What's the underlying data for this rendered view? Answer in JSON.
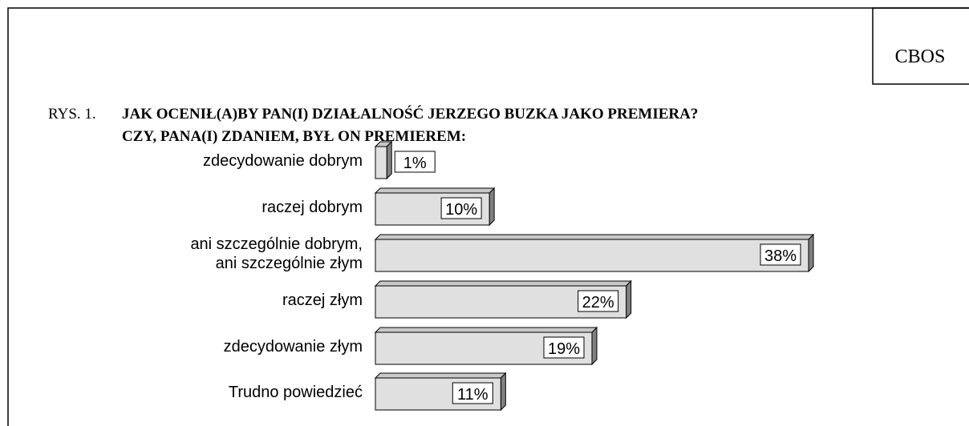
{
  "chart_data": {
    "type": "bar",
    "orientation": "horizontal",
    "source": "CBOS",
    "figure_label": "RYS. 1.",
    "title": [
      "JAK OCENIŁ(A)BY PAN(I) DZIAŁALNOŚĆ JERZEGO BUZKA JAKO PREMIERA?",
      "CZY, PANA(I) ZDANIEM, BYŁ ON PREMIEREM:"
    ],
    "categories": [
      "zdecydowanie dobrym",
      "raczej dobrym",
      "ani szczególnie dobrym,\nani szczególnie złym",
      "raczej złym",
      "zdecydowanie złym",
      "Trudno powiedzieć"
    ],
    "values": [
      1,
      10,
      38,
      22,
      19,
      11
    ],
    "value_labels": [
      "1%",
      "10%",
      "38%",
      "22%",
      "19%",
      "11%"
    ],
    "color": "#e0e0e0",
    "xlim": [
      0,
      38
    ]
  }
}
